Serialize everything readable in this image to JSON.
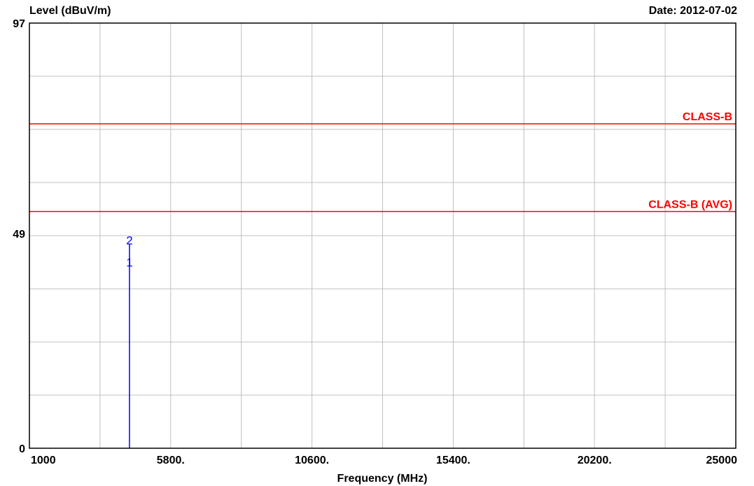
{
  "chart_data": {
    "type": "line",
    "ylabel": "Level (dBuV/m)",
    "xlabel": "Frequency (MHz)",
    "date": "Date: 2012-07-02",
    "xlim": [
      1000,
      25000
    ],
    "ylim": [
      0,
      97
    ],
    "x_tick_labels": [
      "1000",
      "5800.",
      "10600.",
      "15400.",
      "20200.",
      "25000"
    ],
    "x_tick_values": [
      1000,
      5800,
      10600,
      15400,
      20200,
      25000
    ],
    "y_tick_labels": [
      "0",
      "49",
      "97"
    ],
    "y_tick_values": [
      0,
      49,
      97
    ],
    "grid": true,
    "grid_x_divisions": 10,
    "grid_y_divisions": 8,
    "limit_lines": [
      {
        "name": "CLASS-B",
        "y": 74,
        "color": "#ff0000"
      },
      {
        "name": "CLASS-B (AVG)",
        "y": 54,
        "color": "#ff0000"
      }
    ],
    "series": [
      {
        "x": [
          4400,
          4400
        ],
        "y": [
          0,
          46.5
        ],
        "color": "#0000ff"
      }
    ],
    "markers": [
      {
        "label": "1",
        "x": 4400,
        "y": 41.5,
        "color": "#0000ff"
      },
      {
        "label": "2",
        "x": 4400,
        "y": 46.5,
        "color": "#0000ff"
      }
    ]
  }
}
